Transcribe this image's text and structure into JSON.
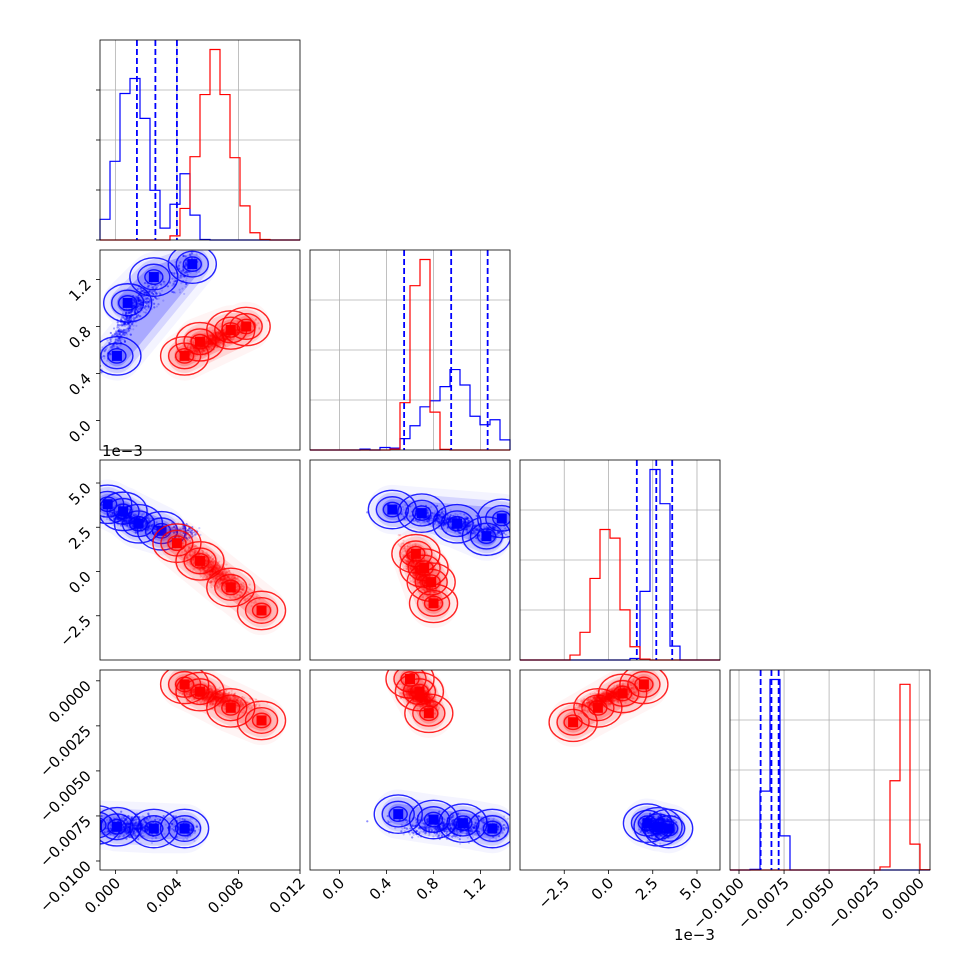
{
  "chart_data": {
    "type": "corner",
    "series": [
      {
        "color": "#0000ff",
        "quantiles": [
          [
            0.0014,
            0.0026,
            0.004
          ],
          [
            0.55,
            0.95,
            1.26
          ],
          [
            1.6,
            2.7,
            3.6
          ],
          [
            -0.0088,
            -0.0082,
            -0.0078
          ]
        ]
      },
      {
        "color": "#ff0000"
      }
    ],
    "params": [
      {
        "range": [
          -0.001,
          0.012
        ],
        "ticks": [
          "0.000",
          "0.004",
          "0.008",
          "0.012"
        ],
        "tick_values": [
          0.0,
          0.004,
          0.008,
          0.012
        ]
      },
      {
        "range": [
          -0.25,
          1.45
        ],
        "ticks": [
          "0.0",
          "0.4",
          "0.8",
          "1.2"
        ],
        "tick_values": [
          0.0,
          0.4,
          0.8,
          1.2
        ]
      },
      {
        "range": [
          -5.0,
          6.3
        ],
        "offset_text": "1e−3",
        "ticks": [
          "−2.5",
          "0.0",
          "2.5",
          "5.0"
        ],
        "tick_values": [
          -2.5,
          0.0,
          2.5,
          5.0
        ]
      },
      {
        "range": [
          -0.0105,
          0.0006
        ],
        "ticks": [
          "−0.0100",
          "−0.0075",
          "−0.0050",
          "−0.0025",
          "0.0000"
        ],
        "tick_values": [
          -0.01,
          -0.0075,
          -0.005,
          -0.0025,
          0.0
        ]
      }
    ],
    "pairs": [
      {
        "row": 1,
        "col": 0,
        "blue": [
          {
            "x": 0.0008,
            "y": 1.0
          },
          {
            "x": 0.0025,
            "y": 1.22
          },
          {
            "x": 0.005,
            "y": 1.33
          },
          {
            "x": 0.0001,
            "y": 0.55
          }
        ],
        "red": [
          {
            "x": 0.0055,
            "y": 0.67
          },
          {
            "x": 0.0075,
            "y": 0.77
          },
          {
            "x": 0.0045,
            "y": 0.55
          },
          {
            "x": 0.0085,
            "y": 0.8
          }
        ]
      },
      {
        "row": 2,
        "col": 0,
        "blue": [
          {
            "x": 0.0005,
            "y": 3.4
          },
          {
            "x": 0.0015,
            "y": 2.7
          },
          {
            "x": 0.003,
            "y": 2.3
          },
          {
            "x": -0.0005,
            "y": 3.8
          }
        ],
        "red": [
          {
            "x": 0.0055,
            "y": 0.6
          },
          {
            "x": 0.0075,
            "y": -0.9
          },
          {
            "x": 0.004,
            "y": 1.6
          },
          {
            "x": 0.0095,
            "y": -2.2
          }
        ]
      },
      {
        "row": 3,
        "col": 0,
        "blue": [
          {
            "x": 0.0001,
            "y": -0.0081
          },
          {
            "x": 0.0025,
            "y": -0.0082
          },
          {
            "x": 0.0045,
            "y": -0.0082
          },
          {
            "x": -0.0012,
            "y": -0.008
          }
        ],
        "red": [
          {
            "x": 0.0055,
            "y": -0.0006
          },
          {
            "x": 0.0075,
            "y": -0.0015
          },
          {
            "x": 0.0095,
            "y": -0.0022
          },
          {
            "x": 0.0045,
            "y": -0.0002
          }
        ]
      },
      {
        "row": 2,
        "col": 1,
        "blue": [
          {
            "x": 1.25,
            "y": 2.0
          },
          {
            "x": 1.0,
            "y": 2.7
          },
          {
            "x": 0.7,
            "y": 3.3
          },
          {
            "x": 1.38,
            "y": 3.0
          },
          {
            "x": 0.45,
            "y": 3.5
          }
        ],
        "red": [
          {
            "x": 0.72,
            "y": 0.2
          },
          {
            "x": 0.78,
            "y": -0.6
          },
          {
            "x": 0.65,
            "y": 1.0
          },
          {
            "x": 0.8,
            "y": -1.8
          }
        ]
      },
      {
        "row": 3,
        "col": 1,
        "blue": [
          {
            "x": 1.3,
            "y": -0.0082
          },
          {
            "x": 1.05,
            "y": -0.0079
          },
          {
            "x": 0.8,
            "y": -0.0077
          },
          {
            "x": 0.5,
            "y": -0.0074
          }
        ],
        "red": [
          {
            "x": 0.68,
            "y": -0.0006
          },
          {
            "x": 0.76,
            "y": -0.0018
          },
          {
            "x": 0.6,
            "y": 0.0001
          }
        ]
      },
      {
        "row": 3,
        "col": 2,
        "blue": [
          {
            "x": 2.8,
            "y": -0.0081
          },
          {
            "x": 2.2,
            "y": -0.0079
          },
          {
            "x": 3.4,
            "y": -0.0082
          }
        ],
        "red": [
          {
            "x": 0.8,
            "y": -0.0007
          },
          {
            "x": -0.6,
            "y": -0.0015
          },
          {
            "x": -2.0,
            "y": -0.0023
          },
          {
            "x": 2.0,
            "y": -0.0002
          }
        ]
      }
    ]
  }
}
